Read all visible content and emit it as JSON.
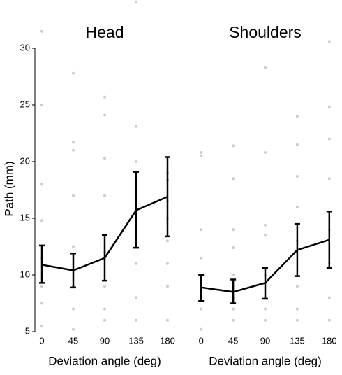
{
  "chart_data": [
    {
      "type": "line",
      "title": "Head",
      "xlabel": "Deviation angle (deg)",
      "ylabel": "Path (mm)",
      "x": [
        0,
        45,
        90,
        135,
        180
      ],
      "xlim": [
        -10,
        190
      ],
      "xticks": [
        0,
        45,
        90,
        135,
        180
      ],
      "ylim": [
        5,
        30
      ],
      "yticks": [
        5,
        10,
        15,
        20,
        25,
        30
      ],
      "series": [
        {
          "color": "#000000",
          "values": [
            10.9,
            10.4,
            11.5,
            15.7,
            16.9
          ],
          "lower": [
            9.3,
            8.9,
            9.5,
            12.4,
            13.4
          ],
          "upper": [
            12.6,
            11.9,
            13.5,
            19.1,
            20.4
          ]
        }
      ],
      "points": {
        "color": "#cccccc",
        "x": [
          0,
          0,
          0,
          0,
          0,
          0,
          0,
          0,
          45,
          45,
          45,
          45,
          45,
          45,
          45,
          45,
          90,
          90,
          90,
          90,
          90,
          90,
          90,
          90,
          135,
          135,
          135,
          135,
          135,
          135,
          135,
          135,
          180,
          180,
          180,
          180,
          180,
          180,
          180,
          180
        ],
        "y": [
          31.5,
          25,
          18,
          14.8,
          11.5,
          9,
          7.5,
          5.5,
          27.8,
          21.7,
          21,
          17,
          12.5,
          9,
          7,
          5.2,
          25.7,
          24.1,
          20.3,
          17,
          12,
          9,
          7,
          6,
          34.1,
          23.1,
          20,
          17,
          13.7,
          11,
          8,
          6,
          19,
          18.4,
          16.5,
          15,
          13,
          11,
          9,
          6
        ]
      }
    },
    {
      "type": "line",
      "title": "Shoulders",
      "xlabel": "Deviation angle (deg)",
      "x": [
        0,
        45,
        90,
        135,
        180
      ],
      "xlim": [
        -10,
        190
      ],
      "xticks": [
        0,
        45,
        90,
        135,
        180
      ],
      "ylim": [
        5,
        30
      ],
      "series": [
        {
          "color": "#000000",
          "values": [
            8.9,
            8.5,
            9.3,
            12.2,
            13.1
          ],
          "lower": [
            7.7,
            7.5,
            7.9,
            9.9,
            10.6
          ],
          "upper": [
            10.0,
            9.6,
            10.6,
            14.5,
            15.6
          ]
        }
      ],
      "points": {
        "color": "#cccccc",
        "x": [
          0,
          0,
          0,
          0,
          0,
          0,
          0,
          0,
          45,
          45,
          45,
          45,
          45,
          45,
          45,
          45,
          90,
          90,
          90,
          90,
          90,
          90,
          90,
          90,
          135,
          135,
          135,
          135,
          135,
          135,
          135,
          135,
          180,
          180,
          180,
          180,
          180,
          180,
          180,
          180
        ],
        "y": [
          20.8,
          20.5,
          14,
          11.5,
          9,
          8,
          7,
          5.2,
          21.4,
          18.5,
          14,
          12.4,
          10,
          8,
          7,
          6,
          28.3,
          20.8,
          14.4,
          13.5,
          10,
          8,
          7,
          6,
          24,
          21.5,
          18.7,
          16,
          13,
          9,
          7,
          6,
          30.6,
          24.8,
          22,
          18.5,
          14,
          11,
          8,
          6
        ]
      }
    }
  ]
}
